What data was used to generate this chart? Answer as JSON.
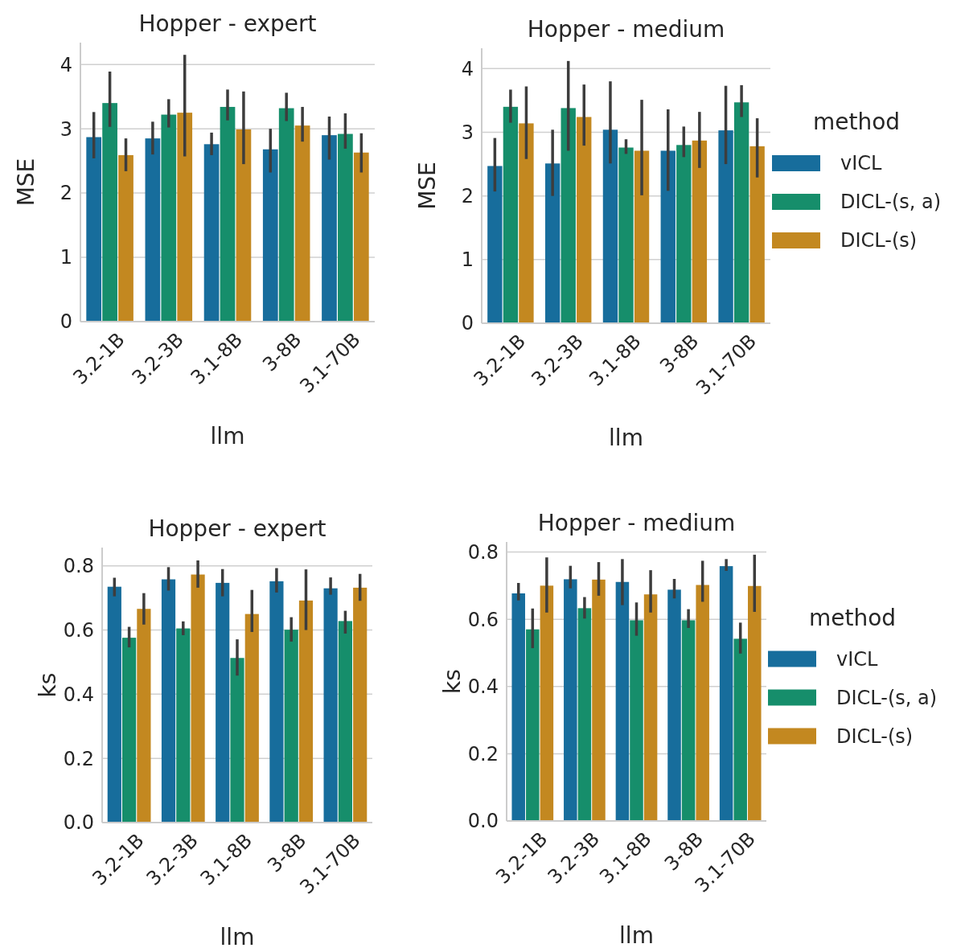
{
  "chart_data": [
    {
      "type": "bar",
      "title": "Hopper - expert",
      "xlabel": "llm",
      "ylabel": "MSE",
      "categories": [
        "3.2-1B",
        "3.2-3B",
        "3.1-8B",
        "3-8B",
        "3.1-70B"
      ],
      "ylim": [
        0,
        4.34
      ],
      "yticks": [
        0,
        1,
        2,
        3,
        4
      ],
      "grid": "y",
      "legend": false,
      "series": [
        {
          "color": "#176d9c",
          "values": [
            2.87,
            2.85,
            2.76,
            2.68,
            2.9
          ],
          "errors": [
            [
              2.54,
              3.26
            ],
            [
              2.6,
              3.11
            ],
            [
              2.59,
              2.94
            ],
            [
              2.32,
              3.0
            ],
            [
              2.52,
              3.19
            ]
          ]
        },
        {
          "color": "#168e6b",
          "values": [
            3.4,
            3.22,
            3.34,
            3.32,
            2.92
          ],
          "errors": [
            [
              3.03,
              3.89
            ],
            [
              3.02,
              3.46
            ],
            [
              3.13,
              3.61
            ],
            [
              3.12,
              3.56
            ],
            [
              2.69,
              3.24
            ]
          ]
        },
        {
          "color": "#c38820",
          "values": [
            2.59,
            3.25,
            2.99,
            3.05,
            2.63
          ],
          "errors": [
            [
              2.34,
              2.85
            ],
            [
              2.57,
              4.15
            ],
            [
              2.45,
              3.58
            ],
            [
              2.8,
              3.34
            ],
            [
              2.32,
              2.93
            ]
          ]
        }
      ]
    },
    {
      "type": "bar",
      "title": "Hopper - medium",
      "xlabel": "llm",
      "ylabel": "MSE",
      "legend_title": "method",
      "categories": [
        "3.2-1B",
        "3.2-3B",
        "3.1-8B",
        "3-8B",
        "3.1-70B"
      ],
      "ylim": [
        0,
        4.32
      ],
      "yticks": [
        0,
        1,
        2,
        3,
        4
      ],
      "grid": "y",
      "legend": "right",
      "series": [
        {
          "name": "vICL",
          "color": "#176d9c",
          "values": [
            2.47,
            2.51,
            3.04,
            2.71,
            3.03
          ],
          "errors": [
            [
              2.07,
              2.91
            ],
            [
              2.0,
              3.04
            ],
            [
              2.51,
              3.8
            ],
            [
              2.08,
              3.36
            ],
            [
              2.5,
              3.73
            ]
          ]
        },
        {
          "name": "DICL-(s, a)",
          "color": "#168e6b",
          "values": [
            3.4,
            3.38,
            2.76,
            2.8,
            3.47
          ],
          "errors": [
            [
              3.15,
              3.67
            ],
            [
              2.71,
              4.12
            ],
            [
              2.66,
              2.89
            ],
            [
              2.61,
              3.09
            ],
            [
              3.24,
              3.74
            ]
          ]
        },
        {
          "name": "DICL-(s)",
          "color": "#c38820",
          "values": [
            3.14,
            3.24,
            2.71,
            2.87,
            2.78
          ],
          "errors": [
            [
              2.58,
              3.72
            ],
            [
              2.79,
              3.75
            ],
            [
              2.01,
              3.51
            ],
            [
              2.44,
              3.32
            ],
            [
              2.29,
              3.22
            ]
          ]
        }
      ]
    },
    {
      "type": "bar",
      "title": "Hopper - expert",
      "xlabel": "llm",
      "ylabel": "ks",
      "categories": [
        "3.2-1B",
        "3.2-3B",
        "3.1-8B",
        "3-8B",
        "3.1-70B"
      ],
      "ylim": [
        0,
        0.857
      ],
      "yticks": [
        {
          "value": 0,
          "label": "0.0"
        },
        0.2,
        0.4,
        0.6,
        0.8
      ],
      "grid": "y",
      "legend": false,
      "series": [
        {
          "color": "#176d9c",
          "values": [
            0.735,
            0.758,
            0.747,
            0.752,
            0.73
          ],
          "errors": [
            [
              0.705,
              0.763
            ],
            [
              0.723,
              0.796
            ],
            [
              0.705,
              0.79
            ],
            [
              0.717,
              0.793
            ],
            [
              0.71,
              0.764
            ]
          ]
        },
        {
          "color": "#168e6b",
          "values": [
            0.576,
            0.605,
            0.513,
            0.601,
            0.628
          ],
          "errors": [
            [
              0.546,
              0.61
            ],
            [
              0.584,
              0.627
            ],
            [
              0.458,
              0.571
            ],
            [
              0.564,
              0.64
            ],
            [
              0.589,
              0.66
            ]
          ]
        },
        {
          "color": "#c38820",
          "values": [
            0.666,
            0.773,
            0.65,
            0.692,
            0.732
          ],
          "errors": [
            [
              0.617,
              0.715
            ],
            [
              0.732,
              0.817
            ],
            [
              0.594,
              0.725
            ],
            [
              0.6,
              0.789
            ],
            [
              0.691,
              0.775
            ]
          ]
        }
      ]
    },
    {
      "type": "bar",
      "title": "Hopper - medium",
      "xlabel": "llm",
      "ylabel": "ks",
      "legend_title": "method",
      "categories": [
        "3.2-1B",
        "3.2-3B",
        "3.1-8B",
        "3-8B",
        "3.1-70B"
      ],
      "ylim": [
        0,
        0.83
      ],
      "yticks": [
        {
          "value": 0,
          "label": "0.0"
        },
        0.2,
        0.4,
        0.6,
        0.8
      ],
      "grid": "y",
      "legend": "right",
      "series": [
        {
          "name": "vICL",
          "color": "#176d9c",
          "values": [
            0.677,
            0.719,
            0.711,
            0.688,
            0.758
          ],
          "errors": [
            [
              0.656,
              0.708
            ],
            [
              0.692,
              0.759
            ],
            [
              0.642,
              0.779
            ],
            [
              0.662,
              0.72
            ],
            [
              0.744,
              0.779
            ]
          ]
        },
        {
          "name": "DICL-(s, a)",
          "color": "#168e6b",
          "values": [
            0.57,
            0.633,
            0.597,
            0.597,
            0.542
          ],
          "errors": [
            [
              0.514,
              0.632
            ],
            [
              0.602,
              0.666
            ],
            [
              0.551,
              0.65
            ],
            [
              0.574,
              0.63
            ],
            [
              0.498,
              0.59
            ]
          ]
        },
        {
          "name": "DICL-(s)",
          "color": "#c38820",
          "values": [
            0.7,
            0.718,
            0.674,
            0.702,
            0.699
          ],
          "errors": [
            [
              0.62,
              0.784
            ],
            [
              0.67,
              0.77
            ],
            [
              0.62,
              0.746
            ],
            [
              0.652,
              0.774
            ],
            [
              0.622,
              0.792
            ]
          ]
        }
      ]
    }
  ]
}
